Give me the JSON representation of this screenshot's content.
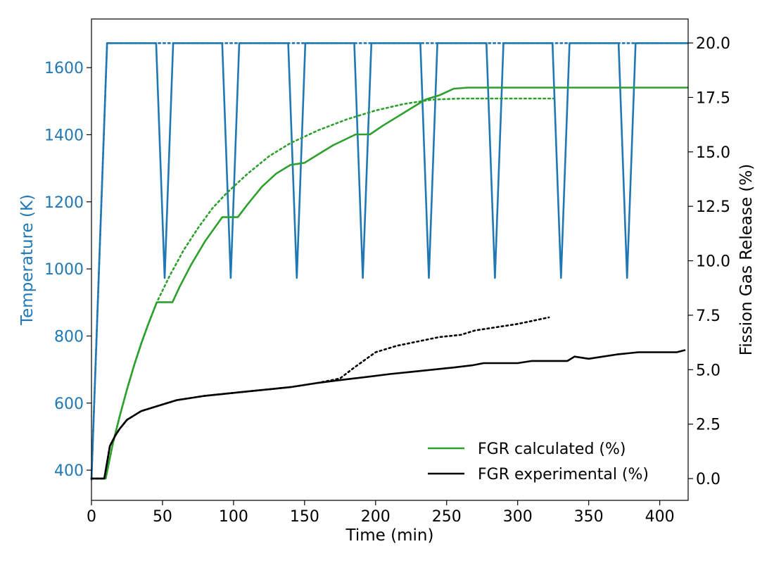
{
  "chart_data": {
    "type": "line",
    "xlabel": "Time (min)",
    "ylabel_left": "Temperature (K)",
    "ylabel_right": "Fission Gas Release (%)",
    "xlim": [
      0,
      420
    ],
    "ylim_left": [
      310,
      1745
    ],
    "ylim_right": [
      -1.0,
      21.1
    ],
    "x_ticks": [
      0,
      50,
      100,
      150,
      200,
      250,
      300,
      350,
      400
    ],
    "x_tick_labels": [
      "0",
      "50",
      "100",
      "150",
      "200",
      "250",
      "300",
      "350",
      "400"
    ],
    "y_left_ticks": [
      400,
      600,
      800,
      1000,
      1200,
      1400,
      1600
    ],
    "y_left_tick_labels": [
      "400",
      "600",
      "800",
      "1000",
      "1200",
      "1400",
      "1600"
    ],
    "y_right_ticks": [
      0.0,
      2.5,
      5.0,
      7.5,
      10.0,
      12.5,
      15.0,
      17.5,
      20.0
    ],
    "y_right_tick_labels": [
      "0.0",
      "2.5",
      "5.0",
      "7.5",
      "10.0",
      "12.5",
      "15.0",
      "17.5",
      "20.0"
    ],
    "grid": false,
    "legend_position": "bottom-right",
    "colors": {
      "temperature": "#1f77b4",
      "calculated": "#2ca02c",
      "experimental": "#000000"
    },
    "series": [
      {
        "name": "Temperature (K)",
        "axis": "left",
        "style": "solid",
        "x": [
          0,
          11,
          45.5,
          51.5,
          57.5,
          92,
          98,
          104,
          138.5,
          144.5,
          150.5,
          185,
          191,
          197,
          231.5,
          237.5,
          243.5,
          278,
          284,
          290,
          324.5,
          330.5,
          336.5,
          371,
          377,
          383,
          420
        ],
        "y": [
          372,
          1673,
          1673,
          973,
          1673,
          1673,
          973,
          1673,
          1673,
          973,
          1673,
          1673,
          973,
          1673,
          1673,
          973,
          1673,
          1673,
          973,
          1673,
          1673,
          973,
          1673,
          1673,
          973,
          1673,
          1673
        ]
      },
      {
        "name": "Temperature (K) dotted",
        "axis": "left",
        "style": "dotted",
        "x": [
          0,
          11,
          45.5,
          57.5,
          92,
          104,
          138.5,
          150.5,
          185,
          197,
          231.5,
          243.5,
          278,
          290,
          324.5,
          336.5,
          371,
          383,
          420
        ],
        "y": [
          372,
          1673,
          1673,
          1673,
          1673,
          1673,
          1673,
          1673,
          1673,
          1673,
          1673,
          1673,
          1673,
          1673,
          1673,
          1673,
          1673,
          1673,
          1673
        ]
      },
      {
        "name": "FGR calculated (%)",
        "axis": "right",
        "style": "solid",
        "x": [
          0,
          10,
          15,
          20,
          25,
          30,
          35,
          40,
          46,
          57,
          62,
          70,
          80,
          92,
          103,
          110,
          120,
          130,
          140,
          150,
          160,
          170,
          186,
          196,
          205,
          215,
          225,
          235,
          245,
          255,
          265,
          300,
          350,
          420
        ],
        "y": [
          0,
          0,
          1.6,
          2.9,
          4.1,
          5.2,
          6.2,
          7.1,
          8.1,
          8.1,
          8.8,
          9.8,
          10.9,
          12.0,
          12.0,
          12.6,
          13.4,
          14.0,
          14.4,
          14.5,
          14.9,
          15.3,
          15.8,
          15.8,
          16.2,
          16.6,
          17.0,
          17.4,
          17.6,
          17.9,
          17.95,
          17.95,
          17.95,
          17.95
        ]
      },
      {
        "name": "FGR calculated dotted",
        "axis": "right",
        "style": "dotted",
        "x": [
          0,
          10,
          15,
          20,
          25,
          30,
          35,
          40,
          46,
          55,
          65,
          75,
          85,
          95,
          110,
          125,
          140,
          160,
          180,
          200,
          220,
          240,
          260,
          280,
          300,
          325
        ],
        "y": [
          0,
          0,
          1.6,
          2.9,
          4.1,
          5.2,
          6.2,
          7.1,
          8.1,
          9.3,
          10.5,
          11.5,
          12.4,
          13.1,
          14.0,
          14.8,
          15.4,
          16.0,
          16.5,
          16.9,
          17.2,
          17.4,
          17.45,
          17.45,
          17.45,
          17.45
        ]
      },
      {
        "name": "FGR experimental (%)",
        "axis": "right",
        "style": "solid",
        "x": [
          0,
          9,
          13,
          17,
          20,
          25,
          30,
          35,
          45,
          50,
          60,
          70,
          80,
          95,
          110,
          125,
          140,
          150,
          160,
          172,
          185,
          198,
          210,
          225,
          240,
          255,
          268,
          276,
          290,
          300,
          310,
          320,
          335,
          340,
          350,
          360,
          370,
          385,
          400,
          412,
          418
        ],
        "y": [
          0,
          0,
          1.5,
          2.0,
          2.3,
          2.7,
          2.9,
          3.1,
          3.3,
          3.4,
          3.6,
          3.7,
          3.8,
          3.9,
          4.0,
          4.1,
          4.2,
          4.3,
          4.4,
          4.5,
          4.6,
          4.7,
          4.8,
          4.9,
          5.0,
          5.1,
          5.2,
          5.3,
          5.3,
          5.3,
          5.4,
          5.4,
          5.4,
          5.6,
          5.5,
          5.6,
          5.7,
          5.8,
          5.8,
          5.8,
          5.9
        ]
      },
      {
        "name": "FGR experimental dotted",
        "axis": "right",
        "style": "dotted",
        "x": [
          0,
          9,
          13,
          17,
          20,
          25,
          30,
          35,
          45,
          50,
          60,
          70,
          80,
          95,
          110,
          125,
          140,
          150,
          160,
          175,
          185,
          200,
          215,
          230,
          245,
          260,
          270,
          280,
          300,
          322
        ],
        "y": [
          0,
          0,
          1.5,
          2.0,
          2.3,
          2.7,
          2.9,
          3.1,
          3.3,
          3.4,
          3.6,
          3.7,
          3.8,
          3.9,
          4.0,
          4.1,
          4.2,
          4.3,
          4.4,
          4.6,
          5.1,
          5.8,
          6.1,
          6.3,
          6.5,
          6.6,
          6.8,
          6.9,
          7.1,
          7.4
        ]
      }
    ],
    "legend": [
      {
        "label": "FGR calculated (%)",
        "color": "#2ca02c"
      },
      {
        "label": "FGR experimental (%)",
        "color": "#000000"
      }
    ]
  }
}
